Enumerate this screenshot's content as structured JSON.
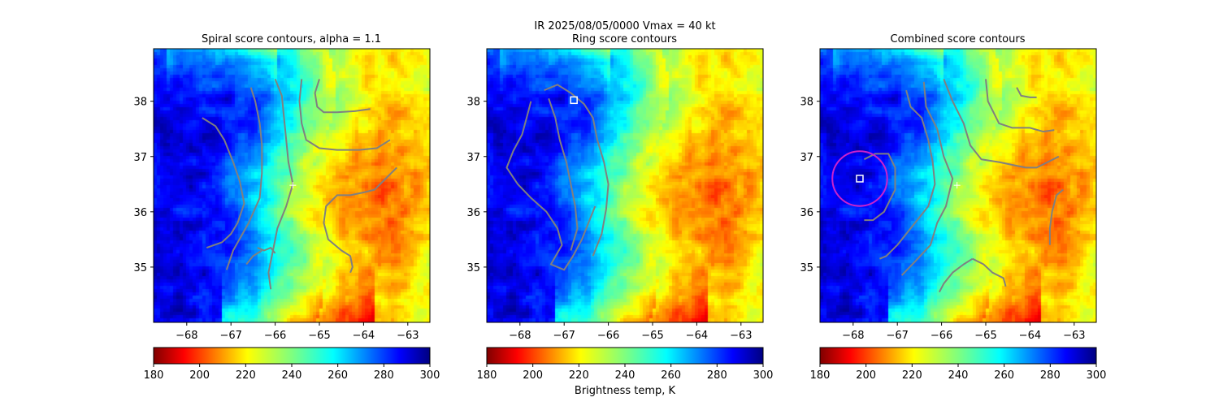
{
  "figure": {
    "suptitle": "IR  2025/08/05/0000    Vmax = 40 kt",
    "colorbar_label": "Brightness temp, K"
  },
  "chart_data": [
    {
      "type": "heatmap",
      "title": "Spiral score contours, alpha =  1.1",
      "xlim": [
        -68.75,
        -62.5
      ],
      "ylim": [
        34.0,
        38.95
      ],
      "xticks": [
        -68,
        -67,
        -66,
        -65,
        -64,
        -63
      ],
      "yticks": [
        35,
        36,
        37,
        38
      ],
      "colormap": "jet_r",
      "colorbar": {
        "vmin": 180,
        "vmax": 300,
        "ticks": [
          180,
          200,
          220,
          240,
          260,
          280,
          300
        ]
      },
      "contour_color": "#808080",
      "contours": [
        [
          [
            -67.65,
            37.7
          ],
          [
            -67.35,
            37.55
          ],
          [
            -67.15,
            37.3
          ],
          [
            -66.95,
            36.9
          ],
          [
            -66.8,
            36.55
          ],
          [
            -66.7,
            36.15
          ],
          [
            -66.85,
            35.8
          ],
          [
            -67.0,
            35.6
          ],
          [
            -67.2,
            35.45
          ],
          [
            -67.55,
            35.35
          ]
        ],
        [
          [
            -66.55,
            38.25
          ],
          [
            -66.45,
            38.0
          ],
          [
            -66.35,
            37.6
          ],
          [
            -66.3,
            37.2
          ],
          [
            -66.3,
            36.7
          ],
          [
            -66.35,
            36.25
          ],
          [
            -66.6,
            35.8
          ],
          [
            -66.95,
            35.3
          ],
          [
            -67.1,
            34.95
          ]
        ],
        [
          [
            -66.0,
            38.4
          ],
          [
            -65.85,
            38.1
          ],
          [
            -65.8,
            37.7
          ],
          [
            -65.75,
            37.3
          ],
          [
            -65.7,
            36.9
          ],
          [
            -65.6,
            36.5
          ],
          [
            -65.75,
            36.1
          ],
          [
            -65.95,
            35.7
          ],
          [
            -66.05,
            35.3
          ],
          [
            -66.15,
            34.9
          ],
          [
            -66.1,
            34.6
          ]
        ],
        [
          [
            -66.4,
            35.35
          ],
          [
            -66.25,
            35.3
          ],
          [
            -66.1,
            35.35
          ],
          [
            -66.0,
            35.25
          ]
        ],
        [
          [
            -66.65,
            35.05
          ],
          [
            -66.5,
            35.2
          ],
          [
            -66.3,
            35.3
          ]
        ],
        [
          [
            -65.0,
            38.4
          ],
          [
            -65.1,
            38.15
          ],
          [
            -65.05,
            37.9
          ],
          [
            -64.9,
            37.8
          ],
          [
            -64.6,
            37.8
          ],
          [
            -64.2,
            37.82
          ],
          [
            -63.85,
            37.86
          ]
        ],
        [
          [
            -65.4,
            38.4
          ],
          [
            -65.45,
            38.0
          ],
          [
            -65.4,
            37.6
          ],
          [
            -65.3,
            37.3
          ],
          [
            -65.0,
            37.15
          ],
          [
            -64.6,
            37.12
          ],
          [
            -64.1,
            37.12
          ],
          [
            -63.7,
            37.15
          ],
          [
            -63.4,
            37.3
          ]
        ],
        [
          [
            -63.25,
            36.8
          ],
          [
            -63.5,
            36.6
          ],
          [
            -63.75,
            36.4
          ],
          [
            -64.0,
            36.35
          ],
          [
            -64.3,
            36.3
          ],
          [
            -64.6,
            36.3
          ],
          [
            -64.85,
            36.1
          ],
          [
            -64.9,
            35.8
          ],
          [
            -64.8,
            35.5
          ],
          [
            -64.5,
            35.3
          ],
          [
            -64.3,
            35.2
          ],
          [
            -64.25,
            35.0
          ],
          [
            -64.3,
            34.9
          ]
        ]
      ],
      "center_marker": {
        "symbol": "+",
        "lon": -65.6,
        "lat": 36.48
      }
    },
    {
      "type": "heatmap",
      "title": "Ring score contours",
      "xlim": [
        -68.75,
        -62.5
      ],
      "ylim": [
        34.0,
        38.95
      ],
      "xticks": [
        -68,
        -67,
        -66,
        -65,
        -64,
        -63
      ],
      "yticks": [
        35,
        36,
        37,
        38
      ],
      "colormap": "jet_r",
      "colorbar": {
        "vmin": 180,
        "vmax": 300,
        "ticks": [
          180,
          200,
          220,
          240,
          260,
          280,
          300
        ]
      },
      "contour_color": "#808080",
      "contours": [
        [
          [
            -67.45,
            38.2
          ],
          [
            -67.15,
            38.3
          ],
          [
            -66.85,
            38.15
          ],
          [
            -66.55,
            37.95
          ],
          [
            -66.35,
            37.7
          ],
          [
            -66.25,
            37.3
          ],
          [
            -66.1,
            36.9
          ],
          [
            -66.0,
            36.5
          ],
          [
            -66.05,
            36.05
          ],
          [
            -66.15,
            35.6
          ],
          [
            -66.35,
            35.2
          ]
        ],
        [
          [
            -67.75,
            38.0
          ],
          [
            -67.85,
            37.7
          ],
          [
            -67.95,
            37.4
          ],
          [
            -68.15,
            37.1
          ],
          [
            -68.3,
            36.8
          ],
          [
            -68.05,
            36.5
          ],
          [
            -67.75,
            36.25
          ],
          [
            -67.4,
            36.0
          ],
          [
            -67.15,
            35.7
          ],
          [
            -67.05,
            35.4
          ],
          [
            -67.3,
            35.05
          ],
          [
            -67.0,
            34.95
          ],
          [
            -66.8,
            35.2
          ],
          [
            -66.6,
            35.5
          ],
          [
            -66.45,
            35.8
          ],
          [
            -66.3,
            36.1
          ]
        ],
        [
          [
            -67.35,
            38.05
          ],
          [
            -67.2,
            37.7
          ],
          [
            -67.1,
            37.3
          ],
          [
            -66.95,
            36.9
          ],
          [
            -66.85,
            36.5
          ],
          [
            -66.75,
            36.1
          ],
          [
            -66.7,
            35.7
          ],
          [
            -66.85,
            35.3
          ]
        ]
      ],
      "square_marker": {
        "lon": -66.78,
        "lat": 38.02
      },
      "center_marker": null
    },
    {
      "type": "heatmap",
      "title": "Combined score contours",
      "xlim": [
        -68.75,
        -62.5
      ],
      "ylim": [
        34.0,
        38.95
      ],
      "xticks": [
        -68,
        -67,
        -66,
        -65,
        -64,
        -63
      ],
      "yticks": [
        35,
        36,
        37,
        38
      ],
      "colormap": "jet_r",
      "colorbar": {
        "vmin": 180,
        "vmax": 300,
        "ticks": [
          180,
          200,
          220,
          240,
          260,
          280,
          300
        ]
      },
      "contour_color": "#808080",
      "contours": [
        [
          [
            -67.75,
            36.95
          ],
          [
            -67.5,
            37.05
          ],
          [
            -67.2,
            37.05
          ],
          [
            -67.05,
            36.8
          ],
          [
            -67.05,
            36.4
          ],
          [
            -67.3,
            36.0
          ],
          [
            -67.55,
            35.85
          ],
          [
            -67.75,
            35.85
          ]
        ],
        [
          [
            -66.8,
            38.2
          ],
          [
            -66.7,
            37.9
          ],
          [
            -66.45,
            37.7
          ],
          [
            -66.3,
            37.3
          ],
          [
            -66.2,
            36.9
          ],
          [
            -66.15,
            36.5
          ],
          [
            -66.3,
            36.1
          ],
          [
            -66.65,
            35.75
          ],
          [
            -66.85,
            35.55
          ],
          [
            -67.0,
            35.4
          ],
          [
            -67.25,
            35.2
          ],
          [
            -67.4,
            35.15
          ]
        ],
        [
          [
            -66.4,
            38.35
          ],
          [
            -66.35,
            37.9
          ],
          [
            -66.1,
            37.5
          ],
          [
            -65.95,
            37.0
          ],
          [
            -65.75,
            36.6
          ],
          [
            -65.9,
            36.1
          ],
          [
            -66.1,
            35.8
          ],
          [
            -66.25,
            35.4
          ],
          [
            -66.6,
            35.1
          ],
          [
            -66.9,
            34.85
          ]
        ],
        [
          [
            -65.95,
            38.4
          ],
          [
            -65.75,
            38.0
          ],
          [
            -65.5,
            37.6
          ],
          [
            -65.35,
            37.2
          ],
          [
            -65.1,
            36.95
          ],
          [
            -64.7,
            36.9
          ],
          [
            -64.4,
            36.85
          ],
          [
            -64.1,
            36.8
          ],
          [
            -63.85,
            36.8
          ],
          [
            -63.6,
            36.9
          ],
          [
            -63.35,
            37.0
          ]
        ],
        [
          [
            -65.0,
            38.4
          ],
          [
            -64.95,
            38.0
          ],
          [
            -64.7,
            37.6
          ],
          [
            -64.4,
            37.52
          ],
          [
            -64.0,
            37.52
          ],
          [
            -63.7,
            37.45
          ],
          [
            -63.45,
            37.48
          ]
        ],
        [
          [
            -64.3,
            38.25
          ],
          [
            -64.2,
            38.1
          ],
          [
            -64.0,
            38.07
          ],
          [
            -63.85,
            38.07
          ]
        ],
        [
          [
            -63.25,
            36.4
          ],
          [
            -63.4,
            36.3
          ],
          [
            -63.5,
            36.0
          ],
          [
            -63.55,
            35.7
          ],
          [
            -63.55,
            35.4
          ]
        ],
        [
          [
            -65.3,
            35.15
          ],
          [
            -65.5,
            35.05
          ],
          [
            -65.75,
            34.9
          ],
          [
            -65.95,
            34.7
          ],
          [
            -66.05,
            34.55
          ]
        ],
        [
          [
            -65.3,
            35.15
          ],
          [
            -65.05,
            35.05
          ],
          [
            -64.85,
            34.9
          ],
          [
            -64.6,
            34.8
          ],
          [
            -64.55,
            34.65
          ]
        ]
      ],
      "circle_marker": {
        "lon": -67.85,
        "lat": 36.6,
        "radius_deg": 0.62,
        "color": "#cc22cc"
      },
      "square_marker": {
        "lon": -67.85,
        "lat": 36.6
      },
      "center_marker": {
        "symbol": "+",
        "lon": -65.65,
        "lat": 36.48
      }
    }
  ]
}
